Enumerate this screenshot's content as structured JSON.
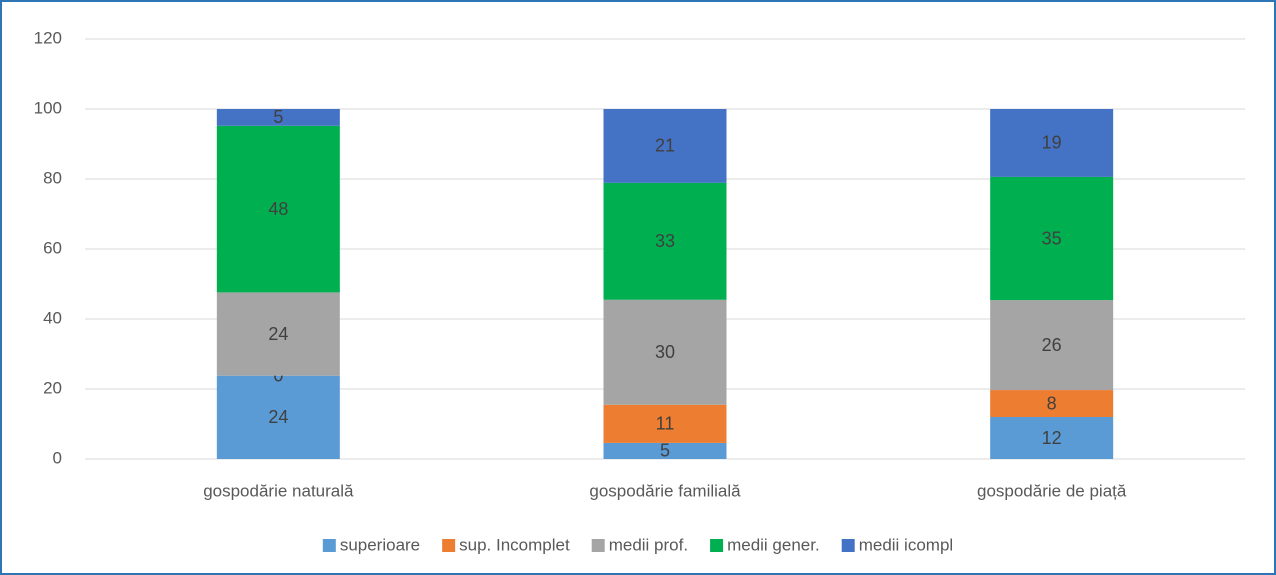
{
  "chart_data": {
    "type": "stacked_bar",
    "categories": [
      "gospodărie naturală",
      "gospodărie familială",
      "gospodărie de piață"
    ],
    "series": [
      {
        "name": "superioare",
        "color": "#5b9bd5",
        "values": [
          23.8,
          4.6,
          12
        ],
        "value_labels": [
          "24",
          "5",
          "12"
        ]
      },
      {
        "name": "sup. Incomplet",
        "color": "#ed7d31",
        "values": [
          0,
          10.9,
          7.7
        ],
        "value_labels": [
          "0",
          "11",
          "8"
        ]
      },
      {
        "name": "medii prof.",
        "color": "#a5a5a5",
        "values": [
          23.8,
          30,
          25.7
        ],
        "value_labels": [
          "24",
          "30",
          "26"
        ]
      },
      {
        "name": "medii gener.",
        "color": "#00b050",
        "values": [
          47.6,
          33.4,
          35.2
        ],
        "value_labels": [
          "48",
          "33",
          "35"
        ]
      },
      {
        "name": "medii icompl",
        "color": "#4472c4",
        "values": [
          4.8,
          21.1,
          19.4
        ],
        "value_labels": [
          "5",
          "21",
          "19"
        ]
      }
    ],
    "ylim": [
      0,
      120
    ],
    "yticks": [
      0,
      20,
      40,
      60,
      80,
      100,
      120
    ],
    "grid": true,
    "legend": "bottom"
  }
}
